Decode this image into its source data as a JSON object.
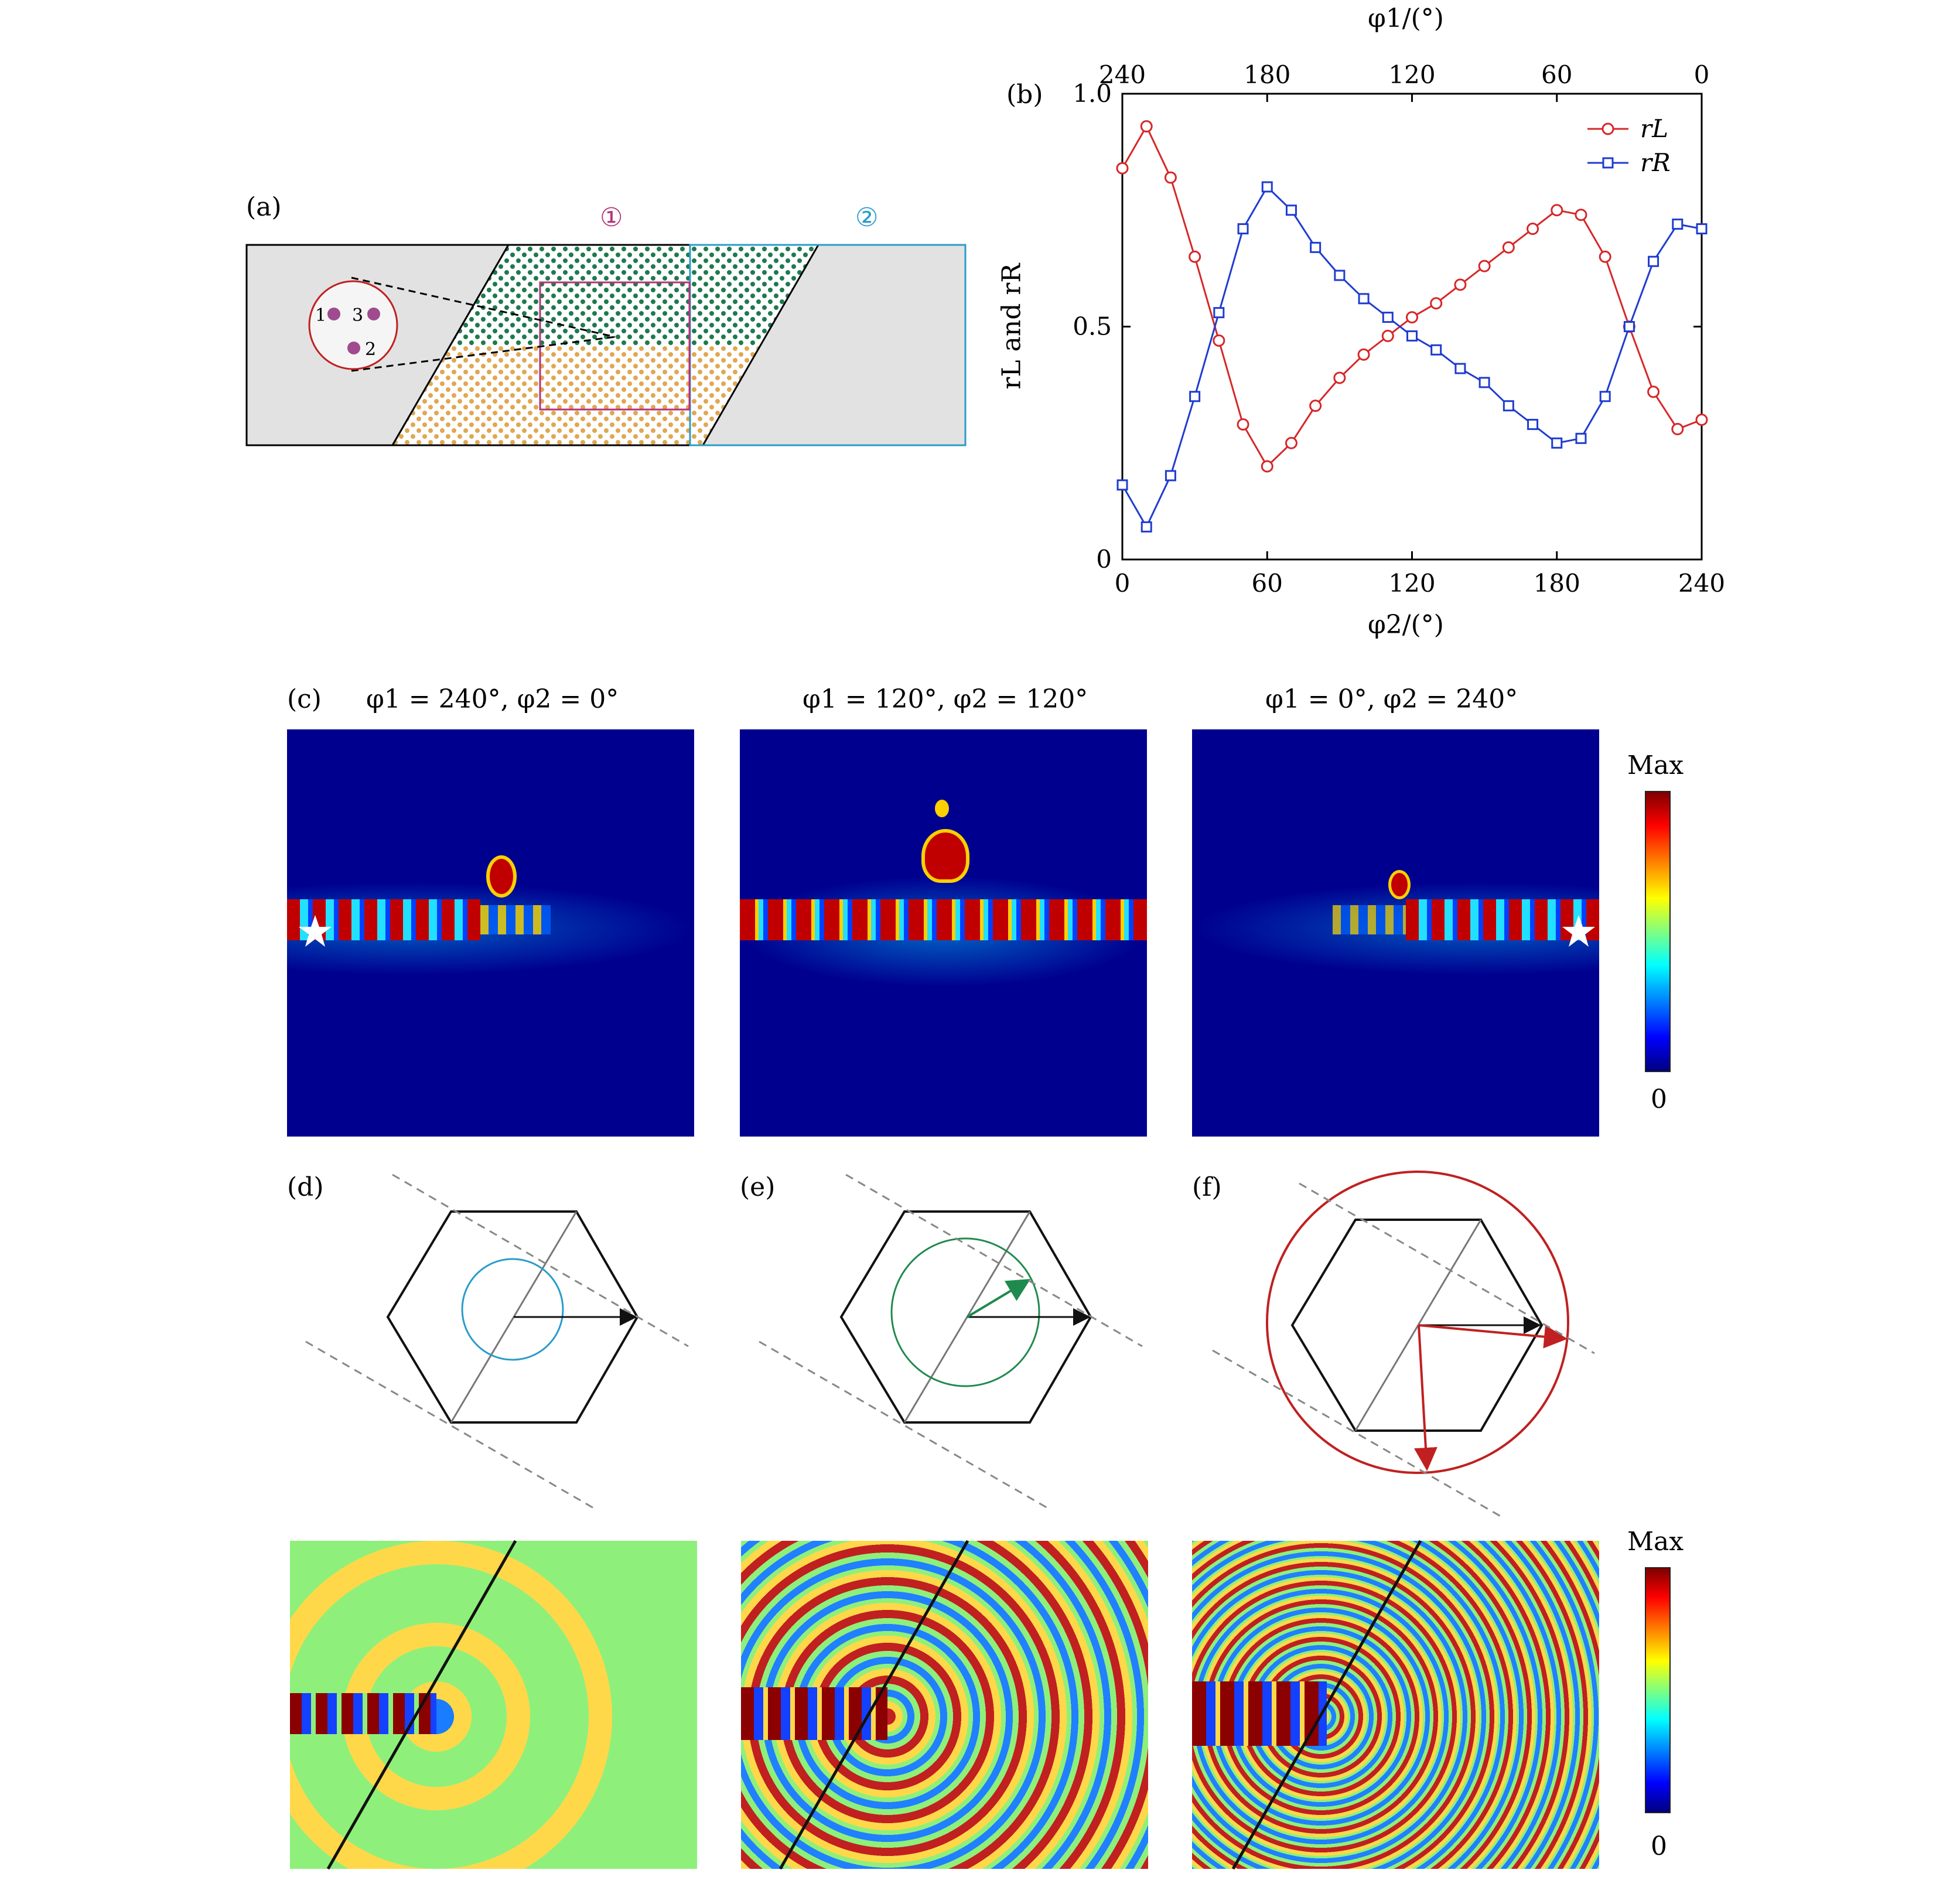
{
  "panels": {
    "a": {
      "label": "(a)",
      "region1": "①",
      "region2": "②",
      "dots": [
        "1",
        "3",
        "2"
      ]
    },
    "b": {
      "label": "(b)"
    },
    "c": {
      "label": "(c)",
      "titles": [
        "φ1 = 240°, φ2 = 0°",
        "φ1 = 120°, φ2 = 120°",
        "φ1 = 0°, φ2 = 240°"
      ]
    },
    "d": {
      "label": "(d)"
    },
    "e": {
      "label": "(e)"
    },
    "f": {
      "label": "(f)"
    }
  },
  "colorbar": {
    "max": "Max",
    "min": "0"
  },
  "chart_data": {
    "type": "line",
    "xlabel": "φ2/(°)",
    "x2label": "φ1/(°)",
    "ylabel": "rL and rR",
    "xlim": [
      0,
      240
    ],
    "ylim": [
      0,
      1
    ],
    "xticks": [
      "0",
      "60",
      "120",
      "180",
      "240"
    ],
    "x2ticks": [
      "240",
      "180",
      "120",
      "60",
      "0"
    ],
    "yticks": [
      "0",
      "0.5",
      "1.0"
    ],
    "legend": "top-right",
    "x": [
      0,
      10,
      20,
      30,
      40,
      50,
      60,
      70,
      80,
      90,
      100,
      110,
      120,
      130,
      140,
      150,
      160,
      170,
      180,
      190,
      200,
      210,
      220,
      230,
      240
    ],
    "series": [
      {
        "name": "rL",
        "marker": "circle",
        "color": "#d62728",
        "values": [
          0.84,
          0.93,
          0.82,
          0.65,
          0.47,
          0.29,
          0.2,
          0.25,
          0.33,
          0.39,
          0.44,
          0.48,
          0.52,
          0.55,
          0.59,
          0.63,
          0.67,
          0.71,
          0.75,
          0.74,
          0.65,
          0.5,
          0.36,
          0.28,
          0.3
        ]
      },
      {
        "name": "rR",
        "marker": "square",
        "color": "#1f3ccf",
        "values": [
          0.16,
          0.07,
          0.18,
          0.35,
          0.53,
          0.71,
          0.8,
          0.75,
          0.67,
          0.61,
          0.56,
          0.52,
          0.48,
          0.45,
          0.41,
          0.38,
          0.33,
          0.29,
          0.25,
          0.26,
          0.35,
          0.5,
          0.64,
          0.72,
          0.71
        ]
      }
    ]
  }
}
